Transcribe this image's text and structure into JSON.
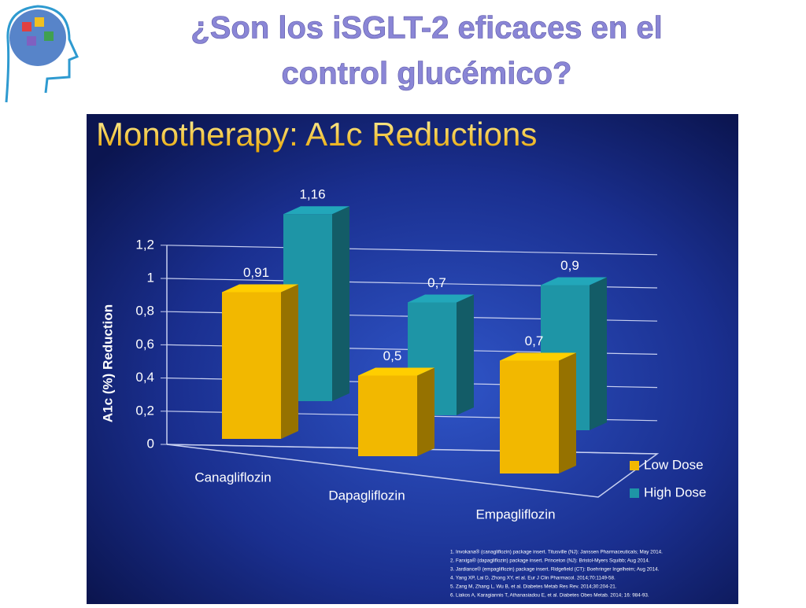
{
  "slide_title": [
    "¿Son los iSGLT-2 eficaces en el",
    "control glucémico?"
  ],
  "chart_data": {
    "type": "bar3d",
    "title": "Monotherapy: A1c Reductions",
    "y_label": "A1c  (%) Reduction",
    "categories": [
      "Canagliflozin",
      "Dapagliflozin",
      "Empagliflozin"
    ],
    "series": [
      {
        "name": "Low Dose",
        "color": "#f2b800",
        "values": [
          0.91,
          0.5,
          0.7
        ],
        "value_labels": [
          "0,91",
          "0,5",
          "0,7"
        ]
      },
      {
        "name": "High Dose",
        "color": "#1e95a6",
        "values": [
          1.16,
          0.7,
          0.9
        ],
        "value_labels": [
          "1,16",
          "0,7",
          "0,9"
        ]
      }
    ],
    "ylim": [
      0,
      1.2
    ],
    "yticks": [
      0,
      {
        "value": 0.2,
        "label": "0,2"
      },
      {
        "value": 0.4,
        "label": "0,4"
      },
      {
        "value": 0.6,
        "label": "0,6"
      },
      {
        "value": 0.8,
        "label": "0,8"
      },
      1,
      {
        "value": 1.2,
        "label": "1,2"
      }
    ],
    "grid": true,
    "legend": "lower-right",
    "references": [
      "1.  Invokana® (canagliflozin) package insert. Titusville (NJ): Janssen Pharmaceuticals; May 2014.",
      "2.  Farxiga® (dapagliflozin) package insert. Princeton (NJ): Bristol-Myers Squibb; Aug 2014.",
      "3.  Jardiance® (empagliflozin) package insert. Ridgefield (CT): Boehringer Ingelheim; Aug 2014.",
      "4.  Yang XP, Lai D, Zhong XY, et al.  Eur J Clin Pharmacol. 2014;70:1149-58.",
      "5.  Zang M, Zhang L, Wu B, et al. Diabetes Metab Res Rev. 2014;30:204-21.",
      "6.  Liakos A, Karagiannis T, Athanasiadou E, et al. Diabetes Obes Metab. 2014; 16: 984-93."
    ]
  }
}
